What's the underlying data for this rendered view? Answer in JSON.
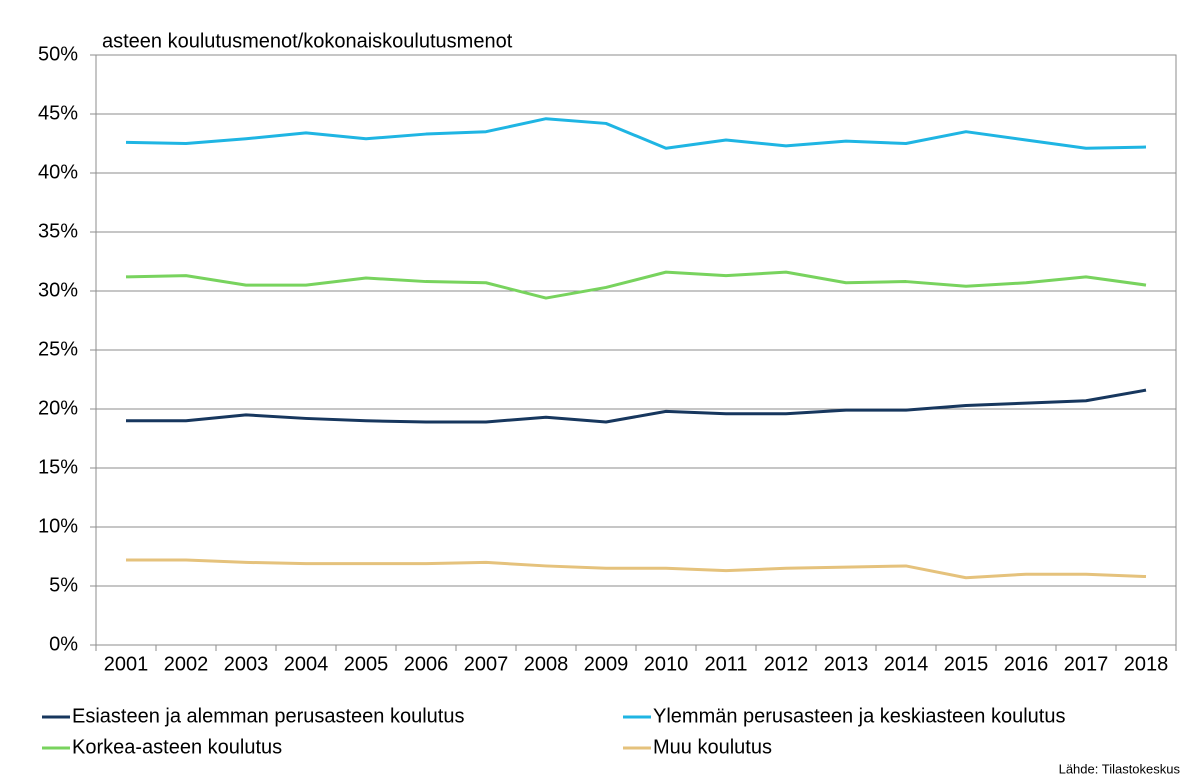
{
  "chart_data": {
    "type": "line",
    "title": "asteen koulutusmenot/kokonaiskoulutusmenot",
    "source": "Lähde: Tilastokeskus",
    "categories": [
      "2001",
      "2002",
      "2003",
      "2004",
      "2005",
      "2006",
      "2007",
      "2008",
      "2009",
      "2010",
      "2011",
      "2012",
      "2013",
      "2014",
      "2015",
      "2016",
      "2017",
      "2018"
    ],
    "series": [
      {
        "name": "Esiasteen ja alemman perusasteen koulutus",
        "color": "#17375e",
        "values": [
          19.0,
          19.0,
          19.5,
          19.2,
          19.0,
          18.9,
          18.9,
          19.3,
          18.9,
          19.8,
          19.6,
          19.6,
          19.9,
          19.9,
          20.3,
          20.5,
          20.7,
          21.6
        ]
      },
      {
        "name": "Ylemmän perusasteen ja keskiasteen koulutus",
        "color": "#1fb5e3",
        "values": [
          42.6,
          42.5,
          42.9,
          43.4,
          42.9,
          43.3,
          43.5,
          44.6,
          44.2,
          42.1,
          42.8,
          42.3,
          42.7,
          42.5,
          43.5,
          42.8,
          42.1,
          42.2
        ]
      },
      {
        "name": "Korkea-asteen koulutus",
        "color": "#78d35e",
        "values": [
          31.2,
          31.3,
          30.5,
          30.5,
          31.1,
          30.8,
          30.7,
          29.4,
          30.3,
          31.6,
          31.3,
          31.6,
          30.7,
          30.8,
          30.4,
          30.7,
          31.2,
          30.5
        ]
      },
      {
        "name": "Muu koulutus",
        "color": "#e5c27c",
        "values": [
          7.2,
          7.2,
          7.0,
          6.9,
          6.9,
          6.9,
          7.0,
          6.7,
          6.5,
          6.5,
          6.3,
          6.5,
          6.6,
          6.7,
          5.7,
          6.0,
          6.0,
          5.8
        ]
      }
    ],
    "ylim": [
      0,
      50
    ],
    "yticks": [
      {
        "value": 0,
        "label": "0%"
      },
      {
        "value": 5,
        "label": "5%"
      },
      {
        "value": 10,
        "label": "10%"
      },
      {
        "value": 15,
        "label": "15%"
      },
      {
        "value": 20,
        "label": "20%"
      },
      {
        "value": 25,
        "label": "25%"
      },
      {
        "value": 30,
        "label": "30%"
      },
      {
        "value": 35,
        "label": "35%"
      },
      {
        "value": 40,
        "label": "40%"
      },
      {
        "value": 45,
        "label": "45%"
      },
      {
        "value": 50,
        "label": "50%"
      }
    ],
    "grid": true,
    "legend": "bottom"
  }
}
